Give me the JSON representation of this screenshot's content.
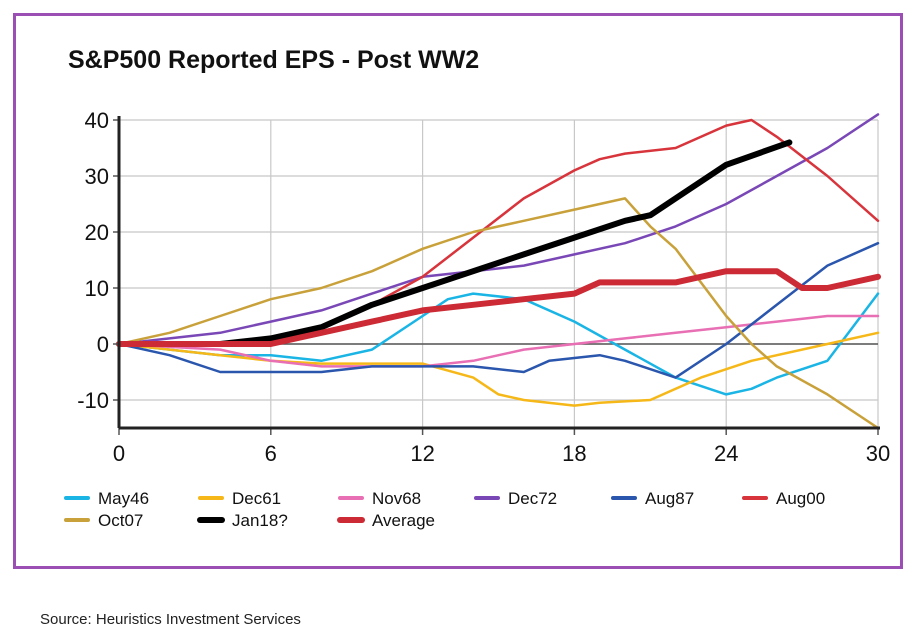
{
  "chart_data": {
    "type": "line",
    "title": "S&P500 Reported EPS - Post WW2",
    "xlabel": "",
    "ylabel": "",
    "xlim": [
      0,
      30
    ],
    "ylim": [
      -15,
      40
    ],
    "x_ticks": [
      0,
      6,
      12,
      18,
      24,
      30
    ],
    "y_ticks": [
      40,
      30,
      20,
      10,
      0,
      -10
    ],
    "grid": true,
    "legend_position": "bottom",
    "series": [
      {
        "name": "May46",
        "color": "#1ab5e5",
        "width": 2.5,
        "x": [
          0,
          2,
          4,
          6,
          8,
          10,
          12,
          13,
          14,
          16,
          18,
          20,
          22,
          24,
          25,
          26,
          28,
          30
        ],
        "y": [
          0,
          -1,
          -2,
          -2,
          -3,
          -1,
          5,
          8,
          9,
          8,
          4,
          -1,
          -6,
          -9,
          -8,
          -6,
          -3,
          9
        ]
      },
      {
        "name": "Dec61",
        "color": "#f5b818",
        "width": 2.5,
        "x": [
          0,
          4,
          6,
          8,
          10,
          12,
          14,
          15,
          16,
          18,
          19,
          21,
          23,
          25,
          28,
          30
        ],
        "y": [
          0,
          -2,
          -3,
          -3.5,
          -3.5,
          -3.5,
          -6,
          -9,
          -10,
          -11,
          -10.5,
          -10,
          -6,
          -3,
          0,
          2
        ]
      },
      {
        "name": "Nov68",
        "color": "#e86fb3",
        "width": 2.5,
        "x": [
          0,
          4,
          6,
          8,
          10,
          12,
          14,
          16,
          18,
          20,
          22,
          24,
          26,
          28,
          30
        ],
        "y": [
          0,
          -1,
          -3,
          -4,
          -4,
          -4,
          -3,
          -1,
          0,
          1,
          2,
          3,
          4,
          5,
          5
        ]
      },
      {
        "name": "Dec72",
        "color": "#7a48b6",
        "width": 2.5,
        "x": [
          0,
          2,
          4,
          6,
          8,
          10,
          12,
          14,
          16,
          18,
          20,
          22,
          24,
          26,
          28,
          30
        ],
        "y": [
          0,
          1,
          2,
          4,
          6,
          9,
          12,
          13,
          14,
          16,
          18,
          21,
          25,
          30,
          35,
          41
        ]
      },
      {
        "name": "Aug87",
        "color": "#2a56ad",
        "width": 2.5,
        "x": [
          0,
          2,
          4,
          6,
          8,
          10,
          12,
          14,
          16,
          17,
          19,
          20,
          22,
          24,
          26,
          28,
          30
        ],
        "y": [
          0,
          -2,
          -5,
          -5,
          -5,
          -4,
          -4,
          -4,
          -5,
          -3,
          -2,
          -3,
          -6,
          0,
          7,
          14,
          18
        ]
      },
      {
        "name": "Aug00",
        "color": "#d8343c",
        "width": 2.5,
        "x": [
          0,
          4,
          6,
          8,
          10,
          12,
          14,
          16,
          18,
          19,
          20,
          22,
          24,
          25,
          26,
          28,
          30
        ],
        "y": [
          0,
          0,
          1,
          3,
          7,
          12,
          19,
          26,
          31,
          33,
          34,
          35,
          39,
          40,
          37,
          30,
          22
        ]
      },
      {
        "name": "Oct07",
        "color": "#c9a13a",
        "width": 2.5,
        "x": [
          0,
          2,
          4,
          6,
          8,
          10,
          12,
          14,
          16,
          18,
          20,
          21,
          22,
          24,
          25,
          26,
          28,
          30
        ],
        "y": [
          0,
          2,
          5,
          8,
          10,
          13,
          17,
          20,
          22,
          24,
          26,
          21,
          17,
          5,
          0,
          -4,
          -9,
          -15
        ]
      },
      {
        "name": "Jan18?",
        "color": "#000000",
        "width": 6,
        "x": [
          0,
          4,
          6,
          8,
          10,
          12,
          14,
          16,
          18,
          20,
          21,
          22,
          24,
          26.5
        ],
        "y": [
          0,
          0,
          1,
          3,
          7,
          10,
          13,
          16,
          19,
          22,
          23,
          26,
          32,
          36
        ]
      },
      {
        "name": "Average",
        "color": "#cc2a34",
        "width": 6,
        "x": [
          0,
          4,
          6,
          8,
          10,
          12,
          14,
          16,
          18,
          19,
          20,
          22,
          24,
          25,
          26,
          27,
          28,
          30
        ],
        "y": [
          0,
          0,
          0,
          2,
          4,
          6,
          7,
          8,
          9,
          11,
          11,
          11,
          13,
          13,
          13,
          10,
          10,
          12
        ]
      }
    ]
  },
  "source": "Source:  Heuristics Investment Services"
}
